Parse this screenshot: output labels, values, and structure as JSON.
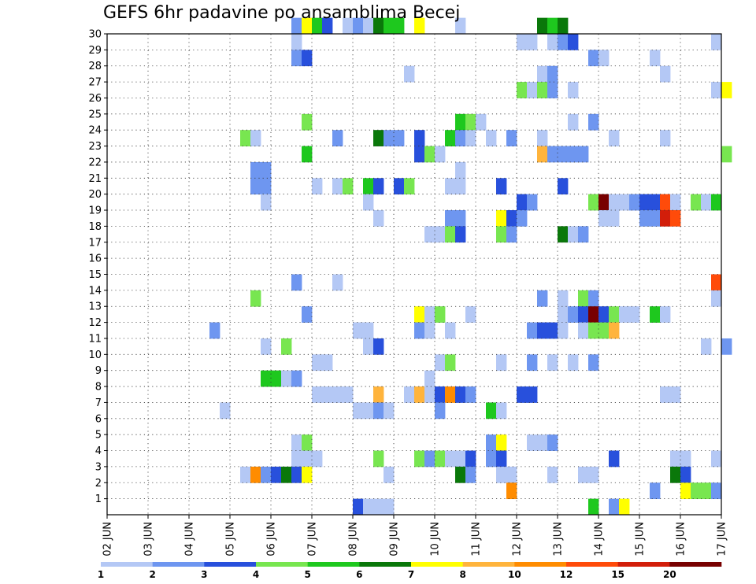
{
  "chart_data": {
    "type": "heatmap",
    "title": "GEFS 6hr padavine po ansamblima Becej",
    "x_tick_labels": [
      "02 JUN",
      "03 JUN",
      "04 JUN",
      "05 JUN",
      "06 JUN",
      "07 JUN",
      "08 JUN",
      "09 JUN",
      "10 JUN",
      "11 JUN",
      "12 JUN",
      "13 JUN",
      "14 JUN",
      "15 JUN",
      "16 JUN",
      "17 JUN"
    ],
    "x_unit": "days from 02 JUN (6-hourly steps)",
    "xlim": [
      0,
      15
    ],
    "y_tick_labels": [
      "1",
      "2",
      "3",
      "4",
      "5",
      "6",
      "7",
      "8",
      "9",
      "10",
      "11",
      "12",
      "13",
      "14",
      "15",
      "16",
      "17",
      "18",
      "19",
      "20",
      "21",
      "22",
      "23",
      "24",
      "25",
      "26",
      "27",
      "28",
      "29",
      "30"
    ],
    "ylim": [
      0,
      30
    ],
    "grid": true,
    "colorbar": {
      "levels": [
        "1",
        "2",
        "3",
        "4",
        "5",
        "6",
        "7",
        "8",
        "10",
        "12",
        "15",
        "20"
      ],
      "colors": [
        "#b4c8f5",
        "#6e96f0",
        "#2850dc",
        "#78e650",
        "#1ec81e",
        "#0a780a",
        "#ffff00",
        "#ffb43c",
        "#ff8c00",
        "#ff4b0a",
        "#d21e0a",
        "#780000"
      ]
    },
    "cells": [
      [
        4.5,
        30,
        2
      ],
      [
        4.75,
        30,
        7
      ],
      [
        5.0,
        30,
        5
      ],
      [
        5.25,
        30,
        3
      ],
      [
        5.75,
        30,
        1
      ],
      [
        6.0,
        30,
        2
      ],
      [
        6.25,
        30,
        1
      ],
      [
        6.5,
        30,
        6
      ],
      [
        6.75,
        30,
        5
      ],
      [
        7.0,
        30,
        5
      ],
      [
        7.5,
        30,
        7
      ],
      [
        8.5,
        30,
        1
      ],
      [
        10.5,
        30,
        6
      ],
      [
        10.75,
        30,
        5
      ],
      [
        11.0,
        30,
        6
      ],
      [
        4.5,
        29,
        1
      ],
      [
        10.0,
        29,
        1
      ],
      [
        10.25,
        29,
        1
      ],
      [
        10.75,
        29,
        1
      ],
      [
        11.0,
        29,
        2
      ],
      [
        11.25,
        29,
        3
      ],
      [
        14.75,
        29,
        1
      ],
      [
        4.5,
        28,
        2
      ],
      [
        4.75,
        28,
        3
      ],
      [
        11.75,
        28,
        2
      ],
      [
        12.0,
        28,
        1
      ],
      [
        13.25,
        28,
        1
      ],
      [
        7.25,
        27,
        1
      ],
      [
        10.5,
        27,
        1
      ],
      [
        10.75,
        27,
        2
      ],
      [
        13.5,
        27,
        1
      ],
      [
        10.0,
        26,
        4
      ],
      [
        10.25,
        26,
        1
      ],
      [
        10.5,
        26,
        4
      ],
      [
        10.75,
        26,
        2
      ],
      [
        11.25,
        26,
        1
      ],
      [
        14.75,
        26,
        1
      ],
      [
        15.0,
        26,
        7
      ],
      [
        4.75,
        24,
        4
      ],
      [
        8.5,
        24,
        5
      ],
      [
        8.75,
        24,
        4
      ],
      [
        9.0,
        24,
        1
      ],
      [
        11.25,
        24,
        1
      ],
      [
        11.75,
        24,
        2
      ],
      [
        3.25,
        23,
        4
      ],
      [
        3.5,
        23,
        1
      ],
      [
        5.5,
        23,
        2
      ],
      [
        6.5,
        23,
        6
      ],
      [
        6.75,
        23,
        2
      ],
      [
        7.0,
        23,
        2
      ],
      [
        7.5,
        23,
        3
      ],
      [
        8.25,
        23,
        5
      ],
      [
        8.5,
        23,
        2
      ],
      [
        8.75,
        23,
        1
      ],
      [
        9.25,
        23,
        1
      ],
      [
        9.75,
        23,
        2
      ],
      [
        10.5,
        23,
        1
      ],
      [
        12.25,
        23,
        1
      ],
      [
        13.5,
        23,
        1
      ],
      [
        4.75,
        22,
        5
      ],
      [
        7.5,
        22,
        3
      ],
      [
        7.75,
        22,
        4
      ],
      [
        8.0,
        22,
        1
      ],
      [
        10.5,
        22,
        8
      ],
      [
        10.75,
        22,
        2
      ],
      [
        11.0,
        22,
        2
      ],
      [
        11.25,
        22,
        2
      ],
      [
        11.5,
        22,
        2
      ],
      [
        15.0,
        22,
        4
      ],
      [
        3.5,
        21,
        2
      ],
      [
        3.75,
        21,
        2
      ],
      [
        8.5,
        21,
        1
      ],
      [
        3.5,
        20,
        2
      ],
      [
        3.75,
        20,
        2
      ],
      [
        5.0,
        20,
        1
      ],
      [
        5.5,
        20,
        1
      ],
      [
        5.75,
        20,
        4
      ],
      [
        6.25,
        20,
        5
      ],
      [
        6.5,
        20,
        3
      ],
      [
        7.0,
        20,
        3
      ],
      [
        7.25,
        20,
        4
      ],
      [
        8.25,
        20,
        1
      ],
      [
        8.5,
        20,
        1
      ],
      [
        9.5,
        20,
        3
      ],
      [
        11.0,
        20,
        3
      ],
      [
        3.75,
        19,
        1
      ],
      [
        6.25,
        19,
        1
      ],
      [
        10.0,
        19,
        3
      ],
      [
        10.25,
        19,
        2
      ],
      [
        11.75,
        19,
        4
      ],
      [
        12.0,
        19,
        12
      ],
      [
        12.25,
        19,
        1
      ],
      [
        12.5,
        19,
        1
      ],
      [
        12.75,
        19,
        2
      ],
      [
        13.0,
        19,
        3
      ],
      [
        13.25,
        19,
        3
      ],
      [
        13.5,
        19,
        10
      ],
      [
        13.75,
        19,
        1
      ],
      [
        14.25,
        19,
        4
      ],
      [
        14.5,
        19,
        1
      ],
      [
        14.75,
        19,
        5
      ],
      [
        6.5,
        18,
        1
      ],
      [
        8.25,
        18,
        2
      ],
      [
        8.5,
        18,
        2
      ],
      [
        9.5,
        18,
        7
      ],
      [
        9.75,
        18,
        3
      ],
      [
        10.0,
        18,
        2
      ],
      [
        12.0,
        18,
        1
      ],
      [
        12.25,
        18,
        1
      ],
      [
        13.0,
        18,
        2
      ],
      [
        13.25,
        18,
        2
      ],
      [
        13.5,
        18,
        11
      ],
      [
        13.75,
        18,
        10
      ],
      [
        7.75,
        17,
        1
      ],
      [
        8.0,
        17,
        1
      ],
      [
        8.25,
        17,
        4
      ],
      [
        8.5,
        17,
        3
      ],
      [
        9.5,
        17,
        4
      ],
      [
        9.75,
        17,
        2
      ],
      [
        11.0,
        17,
        6
      ],
      [
        11.25,
        17,
        1
      ],
      [
        11.5,
        17,
        2
      ],
      [
        4.5,
        14,
        2
      ],
      [
        5.5,
        14,
        1
      ],
      [
        14.75,
        14,
        10
      ],
      [
        3.5,
        13,
        4
      ],
      [
        10.5,
        13,
        2
      ],
      [
        11.0,
        13,
        1
      ],
      [
        11.5,
        13,
        4
      ],
      [
        11.75,
        13,
        2
      ],
      [
        14.75,
        13,
        1
      ],
      [
        4.75,
        12,
        2
      ],
      [
        7.5,
        12,
        7
      ],
      [
        7.75,
        12,
        1
      ],
      [
        8.0,
        12,
        4
      ],
      [
        8.75,
        12,
        1
      ],
      [
        11.0,
        12,
        1
      ],
      [
        11.25,
        12,
        2
      ],
      [
        11.5,
        12,
        3
      ],
      [
        11.75,
        12,
        12
      ],
      [
        12.0,
        12,
        3
      ],
      [
        12.25,
        12,
        4
      ],
      [
        12.5,
        12,
        1
      ],
      [
        12.75,
        12,
        1
      ],
      [
        13.25,
        12,
        5
      ],
      [
        13.5,
        12,
        1
      ],
      [
        2.5,
        11,
        2
      ],
      [
        6.0,
        11,
        1
      ],
      [
        6.25,
        11,
        1
      ],
      [
        7.5,
        11,
        2
      ],
      [
        7.75,
        11,
        1
      ],
      [
        8.25,
        11,
        1
      ],
      [
        10.25,
        11,
        2
      ],
      [
        10.5,
        11,
        3
      ],
      [
        10.75,
        11,
        3
      ],
      [
        11.0,
        11,
        1
      ],
      [
        11.5,
        11,
        1
      ],
      [
        11.75,
        11,
        4
      ],
      [
        12.0,
        11,
        4
      ],
      [
        12.25,
        11,
        8
      ],
      [
        3.75,
        10,
        1
      ],
      [
        4.25,
        10,
        4
      ],
      [
        6.25,
        10,
        1
      ],
      [
        6.5,
        10,
        3
      ],
      [
        14.5,
        10,
        1
      ],
      [
        15.0,
        10,
        2
      ],
      [
        5.0,
        9,
        1
      ],
      [
        5.25,
        9,
        1
      ],
      [
        8.0,
        9,
        1
      ],
      [
        8.25,
        9,
        4
      ],
      [
        9.5,
        9,
        1
      ],
      [
        10.25,
        9,
        2
      ],
      [
        10.75,
        9,
        1
      ],
      [
        11.25,
        9,
        1
      ],
      [
        11.75,
        9,
        2
      ],
      [
        3.75,
        8,
        5
      ],
      [
        4.0,
        8,
        5
      ],
      [
        4.25,
        8,
        1
      ],
      [
        4.5,
        8,
        2
      ],
      [
        7.75,
        8,
        1
      ],
      [
        5.0,
        7,
        1
      ],
      [
        5.25,
        7,
        1
      ],
      [
        5.5,
        7,
        1
      ],
      [
        5.75,
        7,
        1
      ],
      [
        6.5,
        7,
        8
      ],
      [
        7.25,
        7,
        1
      ],
      [
        7.5,
        7,
        8
      ],
      [
        7.75,
        7,
        1
      ],
      [
        8.0,
        7,
        3
      ],
      [
        8.25,
        7,
        9
      ],
      [
        8.5,
        7,
        3
      ],
      [
        8.75,
        7,
        2
      ],
      [
        10.0,
        7,
        3
      ],
      [
        10.25,
        7,
        3
      ],
      [
        13.5,
        7,
        1
      ],
      [
        13.75,
        7,
        1
      ],
      [
        2.75,
        6,
        1
      ],
      [
        6.0,
        6,
        1
      ],
      [
        6.25,
        6,
        1
      ],
      [
        6.5,
        6,
        2
      ],
      [
        6.75,
        6,
        1
      ],
      [
        8.0,
        6,
        2
      ],
      [
        9.25,
        6,
        5
      ],
      [
        9.5,
        6,
        1
      ],
      [
        4.5,
        4,
        1
      ],
      [
        4.75,
        4,
        4
      ],
      [
        9.25,
        4,
        2
      ],
      [
        9.5,
        4,
        7
      ],
      [
        10.25,
        4,
        1
      ],
      [
        10.5,
        4,
        1
      ],
      [
        10.75,
        4,
        2
      ],
      [
        4.5,
        3,
        1
      ],
      [
        4.75,
        3,
        1
      ],
      [
        5.0,
        3,
        1
      ],
      [
        6.5,
        3,
        4
      ],
      [
        7.5,
        3,
        4
      ],
      [
        7.75,
        3,
        2
      ],
      [
        8.0,
        3,
        4
      ],
      [
        8.25,
        3,
        1
      ],
      [
        8.5,
        3,
        1
      ],
      [
        8.75,
        3,
        3
      ],
      [
        9.25,
        3,
        2
      ],
      [
        9.5,
        3,
        3
      ],
      [
        12.25,
        3,
        3
      ],
      [
        13.75,
        3,
        1
      ],
      [
        14.0,
        3,
        1
      ],
      [
        14.75,
        3,
        1
      ],
      [
        3.25,
        2,
        1
      ],
      [
        3.5,
        2,
        9
      ],
      [
        3.75,
        2,
        2
      ],
      [
        4.0,
        2,
        3
      ],
      [
        4.25,
        2,
        6
      ],
      [
        4.5,
        2,
        3
      ],
      [
        4.75,
        2,
        7
      ],
      [
        6.75,
        2,
        1
      ],
      [
        8.5,
        2,
        6
      ],
      [
        8.75,
        2,
        2
      ],
      [
        9.5,
        2,
        1
      ],
      [
        9.75,
        2,
        1
      ],
      [
        10.75,
        2,
        1
      ],
      [
        11.5,
        2,
        1
      ],
      [
        11.75,
        2,
        1
      ],
      [
        13.75,
        2,
        6
      ],
      [
        14.0,
        2,
        3
      ],
      [
        9.75,
        1,
        9
      ],
      [
        13.25,
        1,
        2
      ],
      [
        14.0,
        1,
        7
      ],
      [
        14.25,
        1,
        4
      ],
      [
        14.5,
        1,
        4
      ],
      [
        14.75,
        1,
        2
      ],
      [
        6.0,
        0,
        3
      ],
      [
        6.25,
        0,
        1
      ],
      [
        6.5,
        0,
        1
      ],
      [
        6.75,
        0,
        1
      ],
      [
        11.75,
        0,
        5
      ],
      [
        12.25,
        0,
        2
      ],
      [
        12.5,
        0,
        7
      ]
    ]
  }
}
